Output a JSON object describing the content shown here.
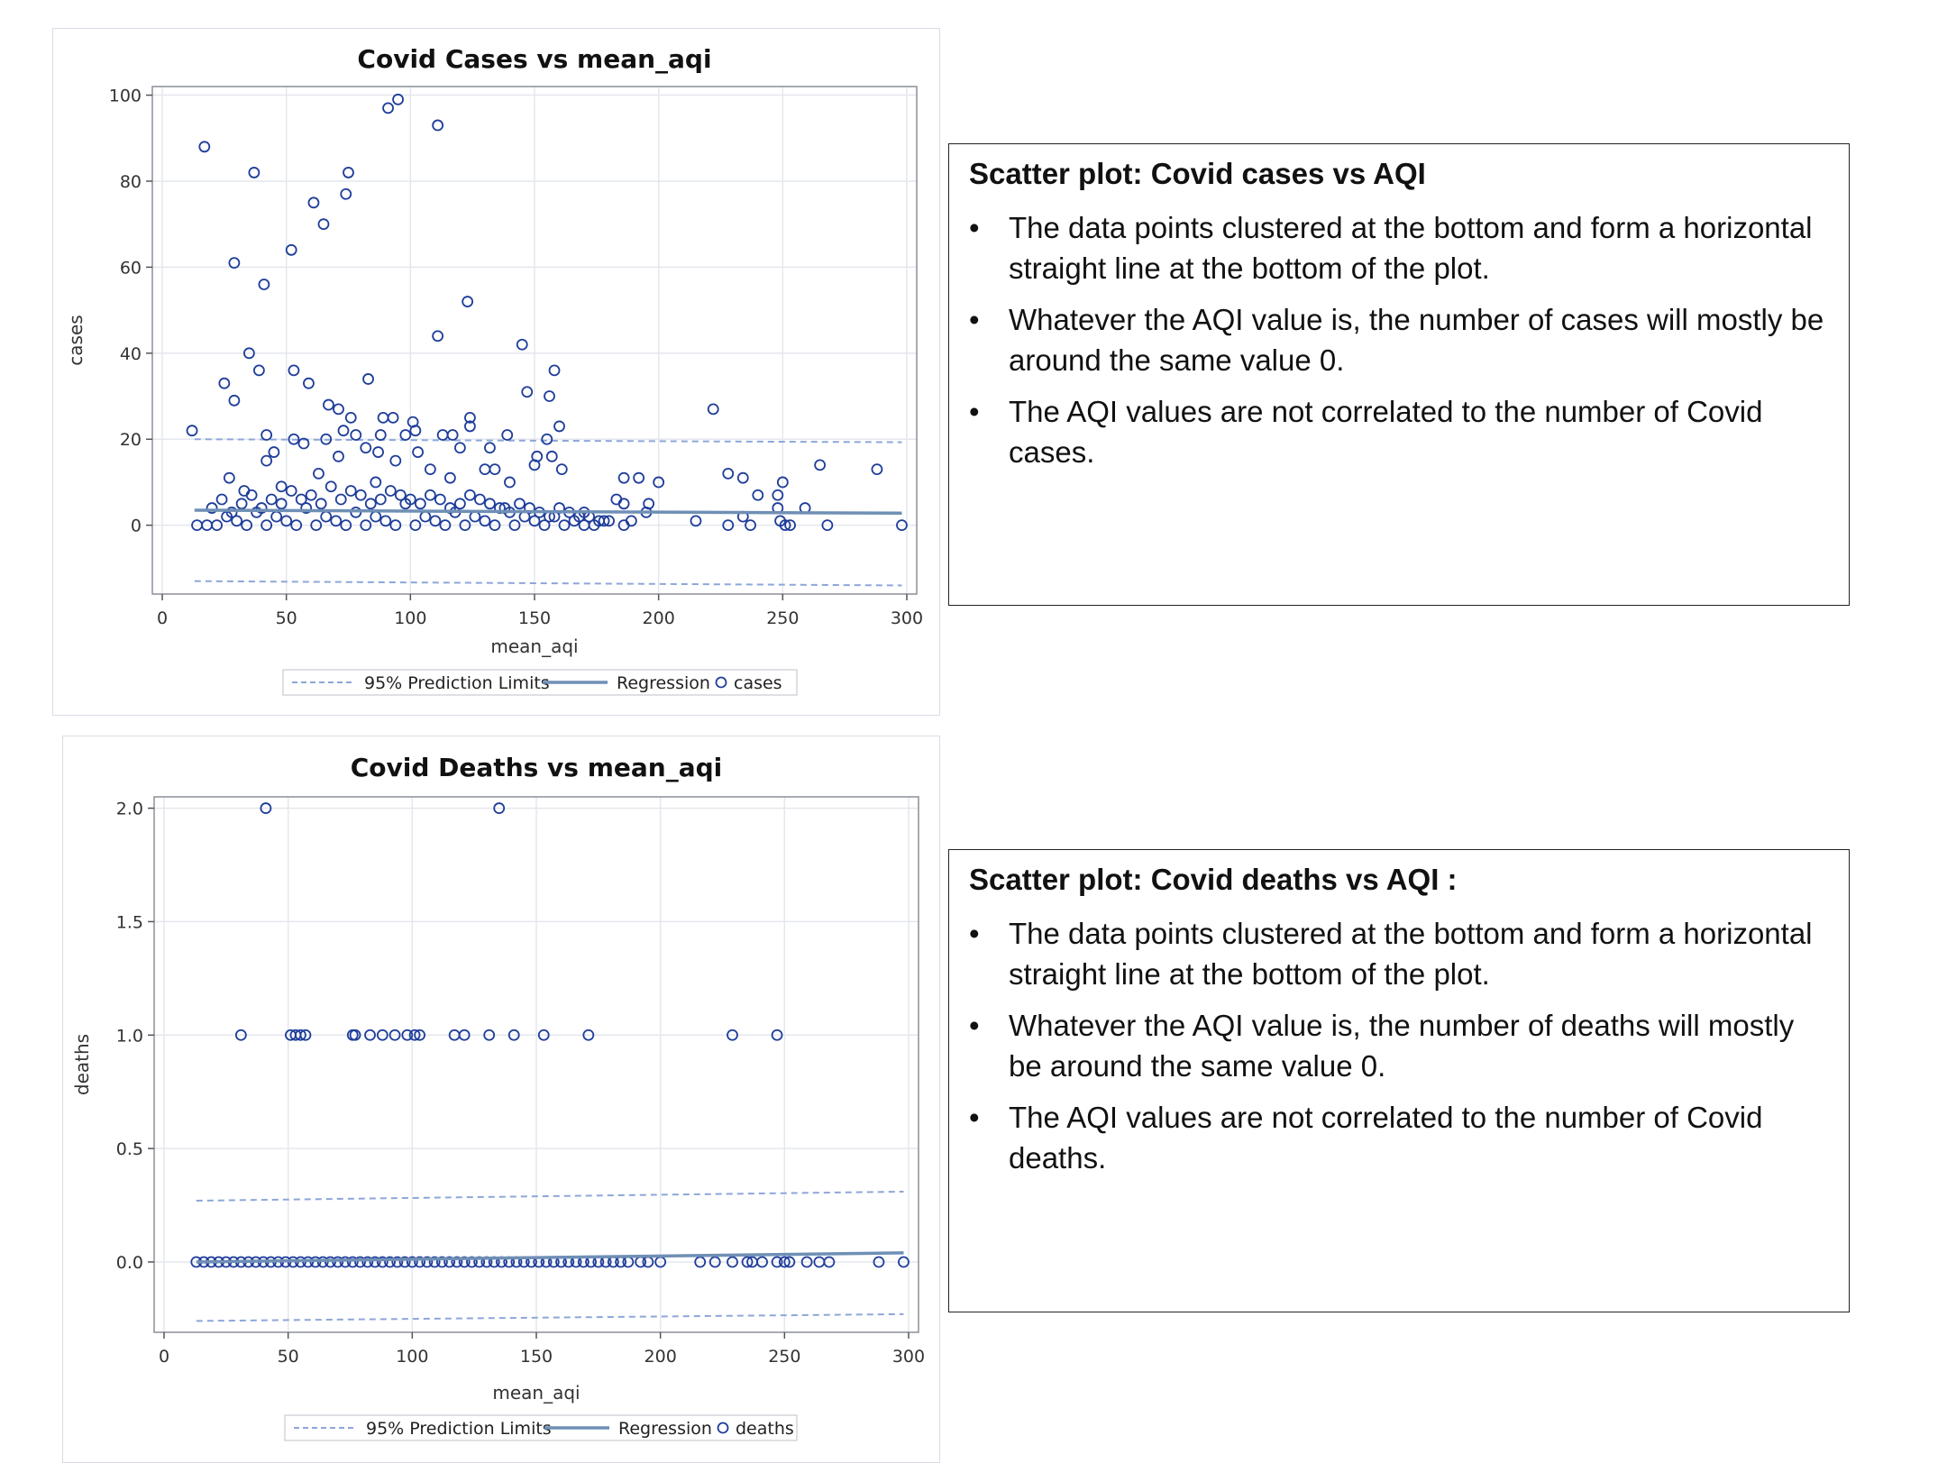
{
  "chart_data": [
    {
      "type": "scatter",
      "title": "Covid Cases vs mean_aqi",
      "xlabel": "mean_aqi",
      "ylabel": "cases",
      "xlim": [
        -4,
        304
      ],
      "ylim": [
        -16,
        102
      ],
      "xticks": [
        "0",
        "50",
        "100",
        "150",
        "200",
        "250",
        "300"
      ],
      "xtick_values": [
        0,
        50,
        100,
        150,
        200,
        250,
        300
      ],
      "yticks": [
        "0",
        "20",
        "40",
        "60",
        "80",
        "100"
      ],
      "ytick_values": [
        0,
        20,
        40,
        60,
        80,
        100
      ],
      "grid": true,
      "legend": {
        "position": "bottom",
        "entries": [
          "95% Prediction Limits",
          "Regression",
          "cases"
        ]
      },
      "regression": {
        "x": [
          13,
          298
        ],
        "y": [
          3.5,
          2.8
        ]
      },
      "prediction_upper": {
        "x": [
          13,
          298
        ],
        "y": [
          20,
          19.3
        ]
      },
      "prediction_lower": {
        "x": [
          13,
          298
        ],
        "y": [
          -13,
          -14
        ]
      },
      "points": [
        [
          12,
          22
        ],
        [
          17,
          88
        ],
        [
          37,
          82
        ],
        [
          75,
          82
        ],
        [
          74,
          77
        ],
        [
          91,
          97
        ],
        [
          95,
          99
        ],
        [
          111,
          93
        ],
        [
          61,
          75
        ],
        [
          65,
          70
        ],
        [
          52,
          64
        ],
        [
          29,
          61
        ],
        [
          41,
          56
        ],
        [
          123,
          52
        ],
        [
          111,
          44
        ],
        [
          145,
          42
        ],
        [
          35,
          40
        ],
        [
          53,
          36
        ],
        [
          39,
          36
        ],
        [
          83,
          34
        ],
        [
          25,
          33
        ],
        [
          59,
          33
        ],
        [
          158,
          36
        ],
        [
          147,
          31
        ],
        [
          156,
          30
        ],
        [
          29,
          29
        ],
        [
          67,
          28
        ],
        [
          71,
          27
        ],
        [
          222,
          27
        ],
        [
          76,
          25
        ],
        [
          89,
          25
        ],
        [
          93,
          25
        ],
        [
          101,
          24
        ],
        [
          124,
          25
        ],
        [
          160,
          23
        ],
        [
          124,
          23
        ],
        [
          73,
          22
        ],
        [
          78,
          21
        ],
        [
          42,
          21
        ],
        [
          113,
          21
        ],
        [
          117,
          21
        ],
        [
          139,
          21
        ],
        [
          88,
          21
        ],
        [
          98,
          21
        ],
        [
          102,
          22
        ],
        [
          53,
          20
        ],
        [
          66,
          20
        ],
        [
          57,
          19
        ],
        [
          155,
          20
        ],
        [
          82,
          18
        ],
        [
          87,
          17
        ],
        [
          45,
          17
        ],
        [
          103,
          17
        ],
        [
          120,
          18
        ],
        [
          132,
          18
        ],
        [
          151,
          16
        ],
        [
          157,
          16
        ],
        [
          42,
          15
        ],
        [
          71,
          16
        ],
        [
          94,
          15
        ],
        [
          108,
          13
        ],
        [
          130,
          13
        ],
        [
          134,
          13
        ],
        [
          161,
          13
        ],
        [
          150,
          14
        ],
        [
          228,
          12
        ],
        [
          234,
          11
        ],
        [
          265,
          14
        ],
        [
          288,
          13
        ],
        [
          186,
          11
        ],
        [
          192,
          11
        ],
        [
          200,
          10
        ],
        [
          250,
          10
        ],
        [
          240,
          7
        ],
        [
          248,
          7
        ],
        [
          183,
          6
        ],
        [
          186,
          5
        ],
        [
          196,
          5
        ],
        [
          259,
          4
        ],
        [
          195,
          3
        ],
        [
          248,
          4
        ],
        [
          215,
          1
        ],
        [
          228,
          0
        ],
        [
          234,
          2
        ],
        [
          237,
          0
        ],
        [
          249,
          1
        ],
        [
          251,
          0
        ],
        [
          253,
          0
        ],
        [
          268,
          0
        ],
        [
          298,
          0
        ],
        [
          27,
          11
        ],
        [
          33,
          8
        ],
        [
          48,
          9
        ],
        [
          63,
          12
        ],
        [
          86,
          10
        ],
        [
          116,
          11
        ],
        [
          140,
          10
        ],
        [
          170,
          3
        ],
        [
          178,
          1
        ],
        [
          189,
          1
        ],
        [
          186,
          0
        ],
        [
          14,
          0
        ],
        [
          18,
          0
        ],
        [
          22,
          0
        ],
        [
          26,
          2
        ],
        [
          30,
          1
        ],
        [
          34,
          0
        ],
        [
          38,
          3
        ],
        [
          42,
          0
        ],
        [
          46,
          2
        ],
        [
          50,
          1
        ],
        [
          54,
          0
        ],
        [
          58,
          4
        ],
        [
          62,
          0
        ],
        [
          66,
          2
        ],
        [
          70,
          1
        ],
        [
          74,
          0
        ],
        [
          78,
          3
        ],
        [
          82,
          0
        ],
        [
          86,
          2
        ],
        [
          90,
          1
        ],
        [
          94,
          0
        ],
        [
          98,
          5
        ],
        [
          102,
          0
        ],
        [
          106,
          2
        ],
        [
          110,
          1
        ],
        [
          114,
          0
        ],
        [
          118,
          3
        ],
        [
          122,
          0
        ],
        [
          126,
          2
        ],
        [
          130,
          1
        ],
        [
          134,
          0
        ],
        [
          138,
          4
        ],
        [
          142,
          0
        ],
        [
          146,
          2
        ],
        [
          150,
          1
        ],
        [
          154,
          0
        ],
        [
          158,
          2
        ],
        [
          162,
          0
        ],
        [
          166,
          1
        ],
        [
          170,
          0
        ],
        [
          174,
          0
        ],
        [
          20,
          4
        ],
        [
          24,
          6
        ],
        [
          28,
          3
        ],
        [
          32,
          5
        ],
        [
          36,
          7
        ],
        [
          40,
          4
        ],
        [
          44,
          6
        ],
        [
          48,
          5
        ],
        [
          52,
          8
        ],
        [
          56,
          6
        ],
        [
          60,
          7
        ],
        [
          64,
          5
        ],
        [
          68,
          9
        ],
        [
          72,
          6
        ],
        [
          76,
          8
        ],
        [
          80,
          7
        ],
        [
          84,
          5
        ],
        [
          88,
          6
        ],
        [
          92,
          8
        ],
        [
          96,
          7
        ],
        [
          100,
          6
        ],
        [
          104,
          5
        ],
        [
          108,
          7
        ],
        [
          112,
          6
        ],
        [
          116,
          4
        ],
        [
          120,
          5
        ],
        [
          124,
          7
        ],
        [
          128,
          6
        ],
        [
          132,
          5
        ],
        [
          136,
          4
        ],
        [
          140,
          3
        ],
        [
          144,
          5
        ],
        [
          148,
          4
        ],
        [
          152,
          3
        ],
        [
          156,
          2
        ],
        [
          160,
          4
        ],
        [
          164,
          3
        ],
        [
          168,
          2
        ],
        [
          172,
          2
        ],
        [
          176,
          1
        ],
        [
          180,
          1
        ]
      ]
    },
    {
      "type": "scatter",
      "title": "Covid Deaths vs mean_aqi",
      "xlabel": "mean_aqi",
      "ylabel": "deaths",
      "xlim": [
        -4,
        304
      ],
      "ylim": [
        -0.31,
        2.05
      ],
      "xticks": [
        "0",
        "50",
        "100",
        "150",
        "200",
        "250",
        "300"
      ],
      "xtick_values": [
        0,
        50,
        100,
        150,
        200,
        250,
        300
      ],
      "yticks": [
        "0.0",
        "0.5",
        "1.0",
        "1.5",
        "2.0"
      ],
      "ytick_values": [
        0,
        0.5,
        1,
        1.5,
        2
      ],
      "grid": true,
      "legend": {
        "position": "bottom",
        "entries": [
          "95% Prediction Limits",
          "Regression",
          "deaths"
        ]
      },
      "regression": {
        "x": [
          13,
          298
        ],
        "y": [
          0.0,
          0.04
        ]
      },
      "prediction_upper": {
        "x": [
          13,
          298
        ],
        "y": [
          0.27,
          0.31
        ]
      },
      "prediction_lower": {
        "x": [
          13,
          298
        ],
        "y": [
          -0.26,
          -0.23
        ]
      },
      "points": [
        [
          41,
          2
        ],
        [
          135,
          2
        ],
        [
          31,
          1
        ],
        [
          51,
          1
        ],
        [
          53,
          1
        ],
        [
          55,
          1
        ],
        [
          57,
          1
        ],
        [
          76,
          1
        ],
        [
          77,
          1
        ],
        [
          83,
          1
        ],
        [
          88,
          1
        ],
        [
          93,
          1
        ],
        [
          98,
          1
        ],
        [
          101,
          1
        ],
        [
          103,
          1
        ],
        [
          117,
          1
        ],
        [
          121,
          1
        ],
        [
          131,
          1
        ],
        [
          141,
          1
        ],
        [
          153,
          1
        ],
        [
          171,
          1
        ],
        [
          229,
          1
        ],
        [
          247,
          1
        ],
        [
          13,
          0
        ],
        [
          16,
          0
        ],
        [
          19,
          0
        ],
        [
          22,
          0
        ],
        [
          25,
          0
        ],
        [
          28,
          0
        ],
        [
          31,
          0
        ],
        [
          34,
          0
        ],
        [
          37,
          0
        ],
        [
          40,
          0
        ],
        [
          43,
          0
        ],
        [
          46,
          0
        ],
        [
          49,
          0
        ],
        [
          52,
          0
        ],
        [
          55,
          0
        ],
        [
          58,
          0
        ],
        [
          61,
          0
        ],
        [
          64,
          0
        ],
        [
          67,
          0
        ],
        [
          70,
          0
        ],
        [
          73,
          0
        ],
        [
          76,
          0
        ],
        [
          79,
          0
        ],
        [
          82,
          0
        ],
        [
          85,
          0
        ],
        [
          88,
          0
        ],
        [
          91,
          0
        ],
        [
          94,
          0
        ],
        [
          97,
          0
        ],
        [
          100,
          0
        ],
        [
          103,
          0
        ],
        [
          106,
          0
        ],
        [
          109,
          0
        ],
        [
          112,
          0
        ],
        [
          115,
          0
        ],
        [
          118,
          0
        ],
        [
          121,
          0
        ],
        [
          124,
          0
        ],
        [
          127,
          0
        ],
        [
          130,
          0
        ],
        [
          133,
          0
        ],
        [
          136,
          0
        ],
        [
          139,
          0
        ],
        [
          142,
          0
        ],
        [
          145,
          0
        ],
        [
          148,
          0
        ],
        [
          151,
          0
        ],
        [
          154,
          0
        ],
        [
          157,
          0
        ],
        [
          160,
          0
        ],
        [
          163,
          0
        ],
        [
          166,
          0
        ],
        [
          169,
          0
        ],
        [
          172,
          0
        ],
        [
          175,
          0
        ],
        [
          178,
          0
        ],
        [
          181,
          0
        ],
        [
          184,
          0
        ],
        [
          187,
          0
        ],
        [
          192,
          0
        ],
        [
          195,
          0
        ],
        [
          200,
          0
        ],
        [
          216,
          0
        ],
        [
          222,
          0
        ],
        [
          229,
          0
        ],
        [
          235,
          0
        ],
        [
          237,
          0
        ],
        [
          241,
          0
        ],
        [
          247,
          0
        ],
        [
          250,
          0
        ],
        [
          252,
          0
        ],
        [
          259,
          0
        ],
        [
          264,
          0
        ],
        [
          268,
          0
        ],
        [
          288,
          0
        ],
        [
          298,
          0
        ]
      ]
    }
  ],
  "colors": {
    "marker": "#1f3d9a",
    "regression": "#6f8fb5",
    "prediction": "#8da7d8",
    "grid": "#e4e7ee",
    "frame": "#8a8f99"
  },
  "notes": [
    {
      "title": "Scatter plot: Covid cases vs AQI",
      "bullet": "•",
      "items": [
        "The data points clustered at the bottom and form a horizontal straight line at the bottom of the plot.",
        "Whatever the AQI value is, the number of cases will mostly be around the same value 0.",
        "The AQI values are not correlated to the number of Covid cases."
      ]
    },
    {
      "title": "Scatter plot: Covid deaths vs AQI :",
      "bullet": "•",
      "items": [
        "The data points clustered at the bottom and form a horizontal straight line at the bottom of the plot.",
        "Whatever the AQI value is, the number of deaths will mostly be around the same value 0.",
        "The AQI values are not correlated to the number of Covid deaths."
      ]
    }
  ]
}
